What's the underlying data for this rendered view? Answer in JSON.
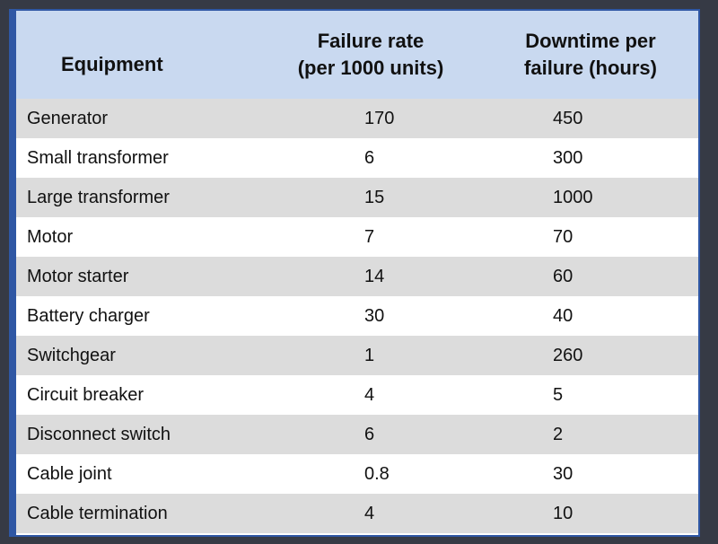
{
  "table": {
    "headers": [
      [
        "Equipment"
      ],
      [
        "Failure rate",
        "(per 1000 units)"
      ],
      [
        "Downtime per",
        "failure (hours)"
      ]
    ],
    "rows": [
      [
        "Generator",
        "170",
        "450"
      ],
      [
        "Small transformer",
        "6",
        "300"
      ],
      [
        "Large transformer",
        "15",
        "1000"
      ],
      [
        "Motor",
        "7",
        "70"
      ],
      [
        "Motor starter",
        "14",
        "60"
      ],
      [
        "Battery charger",
        "30",
        "40"
      ],
      [
        "Switchgear",
        "1",
        "260"
      ],
      [
        "Circuit breaker",
        "4",
        "5"
      ],
      [
        "Disconnect switch",
        "6",
        "2"
      ],
      [
        "Cable joint",
        "0.8",
        "30"
      ],
      [
        "Cable termination",
        "4",
        "10"
      ]
    ]
  },
  "colors": {
    "header_bg": "#c9d9f0",
    "stripe_bg": "#dcdcdc",
    "border": "#2f57a4",
    "outer_bg": "#363a45"
  }
}
